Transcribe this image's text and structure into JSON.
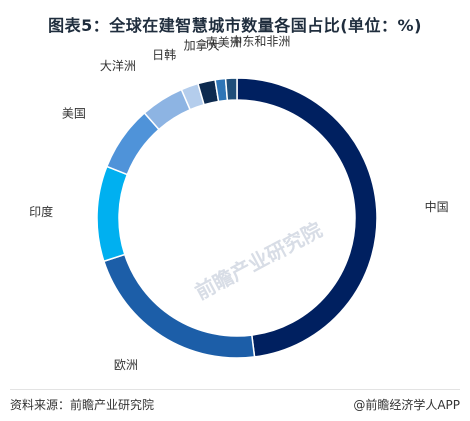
{
  "chart_data": {
    "type": "pie",
    "donut": true,
    "title": "图表5：全球在建智慧城市数量各国占比(单位：%)",
    "categories": [
      "中国",
      "欧洲",
      "印度",
      "美国",
      "大洋洲",
      "日韩",
      "加拿大",
      "南美洲",
      "中东和非洲"
    ],
    "values": [
      48.0,
      22.0,
      11.0,
      7.5,
      5.0,
      2.0,
      2.0,
      1.2,
      1.3
    ],
    "colors": [
      "#002060",
      "#1c5ea8",
      "#00b0f0",
      "#4f93d9",
      "#8db4e3",
      "#b4cdec",
      "#0d2a4f",
      "#2e75b6",
      "#1f4e79"
    ]
  },
  "footer": {
    "source": "资料来源：前瞻产业研究院",
    "brand": "@前瞻经济学人APP"
  },
  "watermark": "前瞻产业研究院"
}
